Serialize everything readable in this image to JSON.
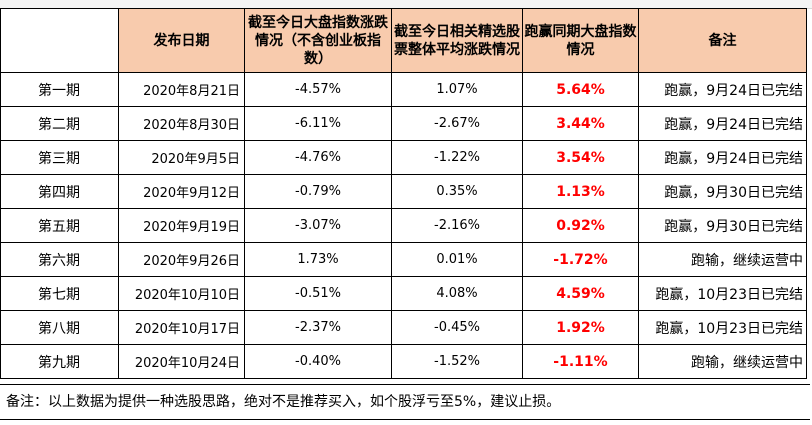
{
  "headers": {
    "blank": "",
    "date": "发布日期",
    "market_change": "截至今日大盘指数涨跌情况（不含创业板指数）",
    "stock_change": "截至今日相关精选股票整体平均涨跌情况",
    "vs_market": "跑赢同期大盘指数情况",
    "remark": "备注"
  },
  "rows": [
    {
      "period": "第一期",
      "date": "2020年8月21日",
      "market": "-4.57%",
      "stocks": "1.07%",
      "vs": "5.64%",
      "remark": "跑赢，9月24日已完结"
    },
    {
      "period": "第二期",
      "date": "2020年8月30日",
      "market": "-6.11%",
      "stocks": "-2.67%",
      "vs": "3.44%",
      "remark": "跑赢，9月24日已完结"
    },
    {
      "period": "第三期",
      "date": "2020年9月5日",
      "market": "-4.76%",
      "stocks": "-1.22%",
      "vs": "3.54%",
      "remark": "跑赢，9月24日已完结"
    },
    {
      "period": "第四期",
      "date": "2020年9月12日",
      "market": "-0.79%",
      "stocks": "0.35%",
      "vs": "1.13%",
      "remark": "跑赢，9月30日已完结"
    },
    {
      "period": "第五期",
      "date": "2020年9月19日",
      "market": "-3.07%",
      "stocks": "-2.16%",
      "vs": "0.92%",
      "remark": "跑赢，9月30日已完结"
    },
    {
      "period": "第六期",
      "date": "2020年9月26日",
      "market": "1.73%",
      "stocks": "0.01%",
      "vs": "-1.72%",
      "remark": "跑输，继续运营中"
    },
    {
      "period": "第七期",
      "date": "2020年10月10日",
      "market": "-0.51%",
      "stocks": "4.08%",
      "vs": "4.59%",
      "remark": "跑赢，10月23日已完结"
    },
    {
      "period": "第八期",
      "date": "2020年10月17日",
      "market": "-2.37%",
      "stocks": "-0.45%",
      "vs": "1.92%",
      "remark": "跑赢，10月23日已完结"
    },
    {
      "period": "第九期",
      "date": "2020年10月24日",
      "market": "-0.40%",
      "stocks": "-1.52%",
      "vs": "-1.11%",
      "remark": "跑输，继续运营中"
    }
  ],
  "footnote": "备注：以上数据为提供一种选股思路，绝对不是推荐买入，如个股浮亏至5%，建议止损。",
  "colors": {
    "header_bg": "#f8cbad",
    "highlight_text": "#ff0000"
  }
}
